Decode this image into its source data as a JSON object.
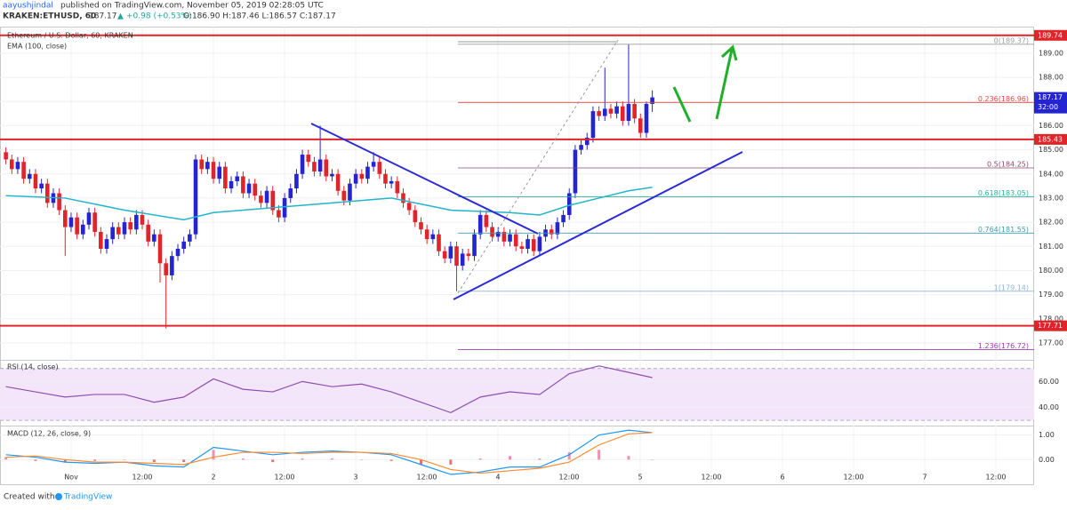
{
  "header": {
    "author": "aayushjindal",
    "published": "published on TradingView.com, November 05, 2019 02:28:05 UTC",
    "symbol": "KRAKEN:ETHUSD, 60",
    "last": "187.17",
    "arrow": "▲",
    "change": "+0.98 (+0.53%)",
    "ohlc": "O:186.90 H:187.46 L:186.57 C:187.17"
  },
  "chart": {
    "title": "Ethereum / U.S. Dollar, 60, KRAKEN",
    "ema_label": "EMA (100, close)",
    "up_color": "#2424d0",
    "down_color": "#e0242a",
    "ema_color": "#22b5c8",
    "ylim": [
      176.3,
      190.1
    ],
    "yticks": [
      {
        "value": 177,
        "label": "177.00"
      },
      {
        "value": 178,
        "label": "178.00"
      },
      {
        "value": 179,
        "label": "179.00"
      },
      {
        "value": 180,
        "label": "180.00"
      },
      {
        "value": 181,
        "label": "181.00"
      },
      {
        "value": 182,
        "label": "182.00"
      },
      {
        "value": 183,
        "label": "183.00"
      },
      {
        "value": 184,
        "label": "184.00"
      },
      {
        "value": 185,
        "label": "185.00"
      },
      {
        "value": 186,
        "label": "186.00"
      },
      {
        "value": 187,
        "label": "187.00"
      },
      {
        "value": 188,
        "label": "188.00"
      },
      {
        "value": 189,
        "label": "189.00"
      }
    ],
    "levels": [
      189.74,
      185.43,
      177.71
    ],
    "last_price": 187.17,
    "countdown": "32:00",
    "fibs": [
      {
        "text": "0(189.37)",
        "price": 189.37,
        "color": "#9e9e9e"
      },
      {
        "text": "0.236(186.96)",
        "price": 186.96,
        "color": "#e04848"
      },
      {
        "text": "0.5(184.25)",
        "price": 184.25,
        "color": "#8d4a6e"
      },
      {
        "text": "0.618(183.05)",
        "price": 183.05,
        "color": "#2bb39a"
      },
      {
        "text": "0.764(181.55)",
        "price": 181.55,
        "color": "#3a9fb5"
      },
      {
        "text": "1(179.14)",
        "price": 179.14,
        "color": "#8fb4d8"
      },
      {
        "text": "1.236(176.72)",
        "price": 176.72,
        "color": "#9c3fb0"
      }
    ],
    "candles": [
      [
        184.9,
        185.1,
        184.4,
        184.6
      ],
      [
        184.6,
        184.8,
        184.0,
        184.2
      ],
      [
        184.2,
        184.7,
        184.0,
        184.5
      ],
      [
        184.5,
        184.7,
        183.6,
        183.8
      ],
      [
        183.8,
        184.2,
        183.6,
        184.0
      ],
      [
        184.0,
        184.2,
        183.2,
        183.4
      ],
      [
        183.4,
        183.8,
        183.2,
        183.6
      ],
      [
        183.6,
        183.8,
        182.6,
        182.8
      ],
      [
        182.8,
        183.4,
        182.6,
        183.2
      ],
      [
        183.2,
        183.4,
        182.3,
        182.5
      ],
      [
        182.5,
        182.7,
        180.6,
        181.8
      ],
      [
        181.8,
        182.4,
        181.6,
        182.2
      ],
      [
        182.2,
        182.4,
        181.3,
        181.5
      ],
      [
        181.5,
        182.1,
        181.3,
        181.9
      ],
      [
        181.9,
        182.6,
        181.7,
        182.4
      ],
      [
        182.4,
        182.6,
        181.4,
        181.6
      ],
      [
        181.6,
        181.8,
        180.7,
        180.9
      ],
      [
        180.9,
        181.5,
        180.7,
        181.3
      ],
      [
        181.3,
        182.0,
        181.1,
        181.8
      ],
      [
        181.8,
        182.0,
        181.3,
        181.5
      ],
      [
        181.5,
        182.2,
        181.3,
        182.0
      ],
      [
        182.0,
        182.2,
        181.5,
        181.7
      ],
      [
        181.7,
        182.5,
        181.5,
        182.3
      ],
      [
        182.3,
        182.5,
        181.7,
        181.9
      ],
      [
        181.9,
        182.1,
        181.0,
        181.2
      ],
      [
        181.2,
        181.7,
        181.0,
        181.5
      ],
      [
        181.5,
        181.7,
        179.5,
        180.3
      ],
      [
        180.3,
        180.5,
        177.6,
        179.8
      ],
      [
        179.8,
        180.8,
        179.6,
        180.6
      ],
      [
        180.6,
        181.1,
        180.4,
        180.9
      ],
      [
        180.9,
        181.4,
        180.7,
        181.2
      ],
      [
        181.2,
        181.7,
        181.0,
        181.5
      ],
      [
        181.5,
        184.8,
        181.3,
        184.6
      ],
      [
        184.6,
        184.8,
        184.0,
        184.2
      ],
      [
        184.2,
        184.7,
        184.0,
        184.5
      ],
      [
        184.5,
        184.7,
        183.6,
        183.8
      ],
      [
        183.8,
        184.5,
        183.6,
        184.3
      ],
      [
        184.3,
        184.5,
        183.2,
        183.4
      ],
      [
        183.4,
        183.9,
        183.2,
        183.7
      ],
      [
        183.7,
        184.1,
        183.5,
        183.9
      ],
      [
        183.9,
        184.1,
        183.0,
        183.2
      ],
      [
        183.2,
        183.8,
        183.0,
        183.6
      ],
      [
        183.6,
        183.8,
        182.9,
        183.1
      ],
      [
        183.1,
        183.3,
        182.6,
        182.8
      ],
      [
        182.8,
        183.5,
        182.6,
        183.3
      ],
      [
        183.3,
        183.5,
        182.3,
        182.5
      ],
      [
        182.5,
        182.7,
        182.0,
        182.2
      ],
      [
        182.2,
        183.2,
        182.0,
        183.0
      ],
      [
        183.0,
        183.6,
        182.8,
        183.4
      ],
      [
        183.4,
        184.2,
        183.2,
        184.0
      ],
      [
        184.0,
        185.0,
        183.8,
        184.8
      ],
      [
        184.8,
        185.0,
        184.3,
        184.5
      ],
      [
        184.5,
        184.7,
        183.9,
        184.1
      ],
      [
        184.1,
        186.0,
        183.9,
        184.6
      ],
      [
        184.6,
        184.8,
        183.7,
        183.9
      ],
      [
        183.9,
        184.2,
        183.7,
        184.0
      ],
      [
        184.0,
        184.2,
        183.1,
        183.3
      ],
      [
        183.3,
        183.5,
        182.7,
        182.9
      ],
      [
        182.9,
        183.8,
        182.7,
        183.6
      ],
      [
        183.6,
        184.2,
        183.4,
        184.0
      ],
      [
        184.0,
        184.2,
        183.6,
        183.8
      ],
      [
        183.8,
        184.5,
        183.6,
        184.3
      ],
      [
        184.3,
        184.9,
        184.1,
        184.5
      ],
      [
        184.5,
        184.7,
        183.8,
        184.0
      ],
      [
        184.0,
        184.2,
        183.4,
        183.6
      ],
      [
        183.6,
        183.9,
        183.4,
        183.7
      ],
      [
        183.7,
        183.9,
        183.0,
        183.2
      ],
      [
        183.2,
        183.4,
        182.6,
        182.8
      ],
      [
        182.8,
        183.0,
        182.3,
        182.5
      ],
      [
        182.5,
        182.7,
        181.8,
        182.0
      ],
      [
        182.0,
        182.2,
        181.5,
        181.7
      ],
      [
        181.7,
        181.9,
        181.1,
        181.3
      ],
      [
        181.3,
        181.7,
        181.1,
        181.5
      ],
      [
        181.5,
        181.7,
        180.6,
        180.8
      ],
      [
        180.8,
        181.0,
        180.3,
        180.5
      ],
      [
        180.5,
        181.2,
        180.3,
        181.0
      ],
      [
        181.0,
        181.2,
        179.14,
        180.2
      ],
      [
        180.2,
        180.9,
        180.0,
        180.7
      ],
      [
        180.7,
        180.9,
        180.4,
        180.6
      ],
      [
        180.6,
        181.7,
        180.4,
        181.5
      ],
      [
        181.5,
        182.5,
        181.3,
        182.3
      ],
      [
        182.3,
        182.5,
        181.6,
        181.8
      ],
      [
        181.8,
        182.0,
        181.2,
        181.4
      ],
      [
        181.4,
        181.8,
        181.2,
        181.6
      ],
      [
        181.6,
        181.8,
        181.0,
        181.2
      ],
      [
        181.2,
        181.7,
        181.0,
        181.5
      ],
      [
        181.5,
        181.7,
        180.8,
        181.0
      ],
      [
        181.0,
        181.2,
        180.7,
        180.9
      ],
      [
        180.9,
        181.5,
        180.7,
        181.3
      ],
      [
        181.3,
        181.5,
        180.6,
        180.8
      ],
      [
        180.8,
        181.6,
        180.6,
        181.4
      ],
      [
        181.4,
        181.9,
        181.2,
        181.7
      ],
      [
        181.7,
        181.9,
        181.3,
        181.5
      ],
      [
        181.5,
        182.2,
        181.3,
        182.0
      ],
      [
        182.0,
        182.5,
        181.8,
        182.3
      ],
      [
        182.3,
        183.4,
        182.1,
        183.2
      ],
      [
        183.2,
        185.2,
        183.0,
        185.0
      ],
      [
        185.0,
        185.4,
        184.8,
        185.2
      ],
      [
        185.2,
        185.7,
        185.0,
        185.5
      ],
      [
        185.5,
        186.8,
        185.3,
        186.6
      ],
      [
        186.6,
        186.8,
        186.2,
        186.4
      ],
      [
        186.4,
        188.4,
        186.2,
        186.7
      ],
      [
        186.7,
        186.9,
        186.3,
        186.5
      ],
      [
        186.5,
        187.0,
        186.3,
        186.8
      ],
      [
        186.8,
        187.0,
        186.0,
        186.2
      ],
      [
        186.2,
        189.37,
        186.0,
        186.9
      ],
      [
        186.9,
        187.1,
        186.1,
        186.3
      ],
      [
        186.3,
        186.5,
        185.5,
        185.7
      ],
      [
        185.7,
        187.0,
        185.5,
        186.9
      ],
      [
        186.9,
        187.46,
        186.57,
        187.17
      ]
    ],
    "ema": {
      "x": [
        0,
        10,
        20,
        30,
        35,
        45,
        55,
        65,
        75,
        85,
        90,
        95,
        100,
        105,
        109
      ],
      "values": [
        183.1,
        183.0,
        182.5,
        182.1,
        182.4,
        182.6,
        182.8,
        183.0,
        182.5,
        182.4,
        182.3,
        182.7,
        183.0,
        183.3,
        183.45
      ]
    },
    "time_labels": [
      "Nov",
      "12:00",
      "2",
      "12:00",
      "3",
      "12:00",
      "4",
      "12:00",
      "5",
      "12:00",
      "6",
      "12:00",
      "7",
      "12:00"
    ]
  },
  "rsi": {
    "label": "RSI (14, close)",
    "color": "#8e4fb0",
    "ylim": [
      26,
      76
    ],
    "band": [
      30,
      70
    ],
    "yticks": [
      {
        "value": 40,
        "label": "40.00"
      },
      {
        "value": 60,
        "label": "60.00"
      }
    ],
    "x": [
      0,
      5,
      10,
      15,
      20,
      25,
      30,
      35,
      40,
      45,
      50,
      55,
      60,
      65,
      70,
      75,
      80,
      85,
      90,
      95,
      100,
      105,
      109
    ],
    "values": [
      56,
      52,
      48,
      50,
      50,
      44,
      48,
      62,
      54,
      52,
      60,
      56,
      58,
      52,
      44,
      36,
      48,
      52,
      50,
      66,
      72,
      67,
      63
    ]
  },
  "macd": {
    "label": "MACD (12, 26, close, 9)",
    "ylim": [
      -1.0,
      1.35
    ],
    "yticks": [
      {
        "value": 1,
        "label": "1.00"
      },
      {
        "value": 0,
        "label": "0.00"
      }
    ],
    "x": [
      0,
      5,
      10,
      15,
      20,
      25,
      30,
      35,
      40,
      45,
      50,
      55,
      60,
      65,
      70,
      75,
      80,
      85,
      90,
      95,
      100,
      105,
      109
    ],
    "macd": [
      0.2,
      0.1,
      -0.1,
      -0.15,
      -0.1,
      -0.25,
      -0.3,
      0.5,
      0.35,
      0.2,
      0.3,
      0.35,
      0.3,
      0.2,
      -0.2,
      -0.6,
      -0.5,
      -0.3,
      -0.3,
      0.2,
      1.0,
      1.2,
      1.1
    ],
    "signal": [
      0.1,
      0.15,
      0.0,
      -0.1,
      -0.1,
      -0.15,
      -0.2,
      0.1,
      0.3,
      0.3,
      0.25,
      0.3,
      0.3,
      0.25,
      0.0,
      -0.4,
      -0.55,
      -0.45,
      -0.35,
      -0.1,
      0.6,
      1.05,
      1.1
    ],
    "macd_color": "#2196f3",
    "signal_color": "#ff8a30"
  },
  "footer": {
    "text": "Created with",
    "brand": "TradingView"
  }
}
